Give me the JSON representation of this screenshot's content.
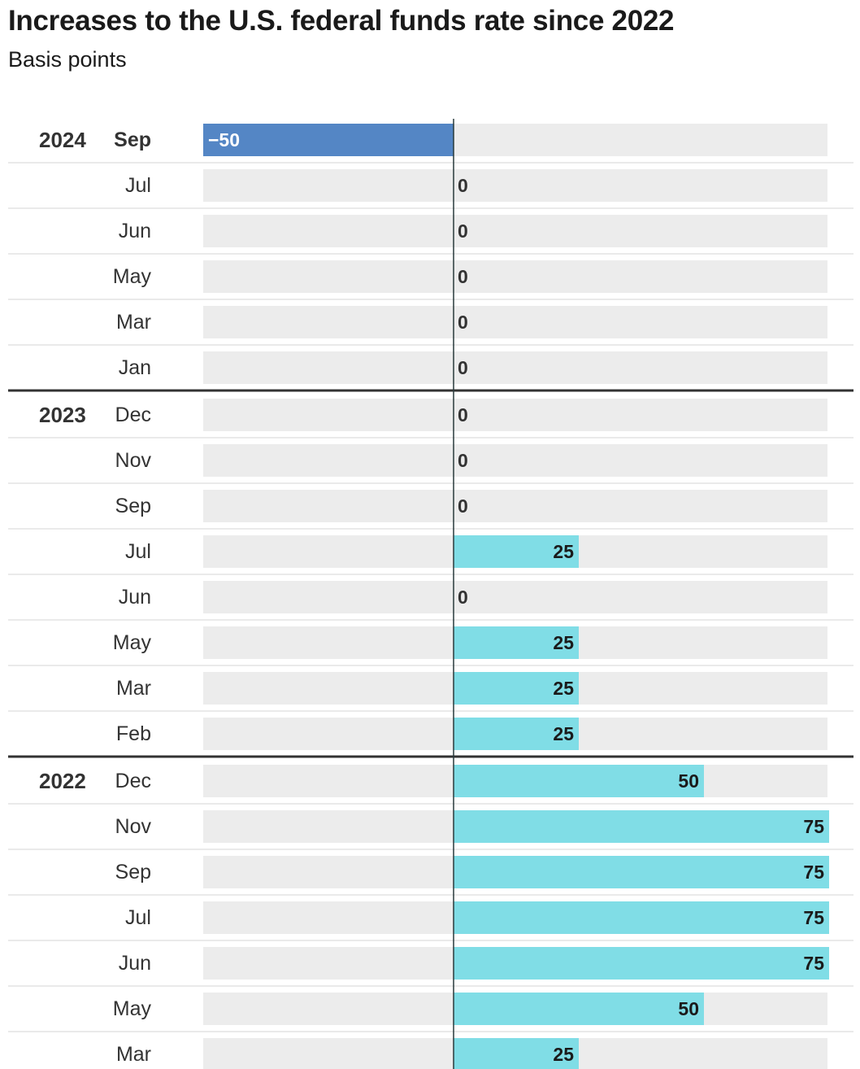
{
  "title": "Increases to the U.S. federal funds rate since 2022",
  "subtitle": "Basis points",
  "chart_data": {
    "type": "bar",
    "orientation": "horizontal",
    "title": "Increases to the U.S. federal funds rate since 2022",
    "subtitle": "Basis points",
    "xlim": [
      -50,
      75
    ],
    "colors": {
      "positive": "#80dde6",
      "negative": "#5486c5",
      "track": "#ececec",
      "axis": "#2a3b3d"
    },
    "groups": [
      {
        "year": "2024",
        "rows": [
          {
            "month": "Sep",
            "value": -50,
            "label": "−50"
          },
          {
            "month": "Jul",
            "value": 0,
            "label": "0"
          },
          {
            "month": "Jun",
            "value": 0,
            "label": "0"
          },
          {
            "month": "May",
            "value": 0,
            "label": "0"
          },
          {
            "month": "Mar",
            "value": 0,
            "label": "0"
          },
          {
            "month": "Jan",
            "value": 0,
            "label": "0"
          }
        ]
      },
      {
        "year": "2023",
        "rows": [
          {
            "month": "Dec",
            "value": 0,
            "label": "0"
          },
          {
            "month": "Nov",
            "value": 0,
            "label": "0"
          },
          {
            "month": "Sep",
            "value": 0,
            "label": "0"
          },
          {
            "month": "Jul",
            "value": 25,
            "label": "25"
          },
          {
            "month": "Jun",
            "value": 0,
            "label": "0"
          },
          {
            "month": "May",
            "value": 25,
            "label": "25"
          },
          {
            "month": "Mar",
            "value": 25,
            "label": "25"
          },
          {
            "month": "Feb",
            "value": 25,
            "label": "25"
          }
        ]
      },
      {
        "year": "2022",
        "rows": [
          {
            "month": "Dec",
            "value": 50,
            "label": "50"
          },
          {
            "month": "Nov",
            "value": 75,
            "label": "75"
          },
          {
            "month": "Sep",
            "value": 75,
            "label": "75"
          },
          {
            "month": "Jul",
            "value": 75,
            "label": "75"
          },
          {
            "month": "Jun",
            "value": 75,
            "label": "75"
          },
          {
            "month": "May",
            "value": 50,
            "label": "50"
          },
          {
            "month": "Mar",
            "value": 25,
            "label": "25"
          }
        ]
      }
    ]
  }
}
